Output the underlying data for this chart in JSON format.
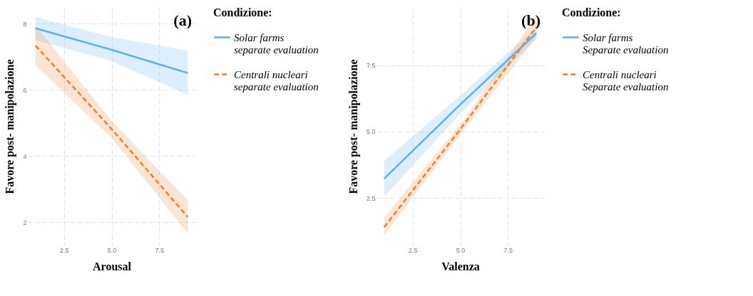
{
  "chart_data": [
    {
      "type": "line",
      "title": "(a)",
      "xlabel": "Arousal",
      "ylabel": "Favore post- manipolazione",
      "legend_title": "Condizione:",
      "legend": "right",
      "grid": true,
      "xlim": [
        0.6,
        9.4
      ],
      "xticks": [
        {
          "value": 2.5,
          "label": "2.5"
        },
        {
          "value": 5,
          "label": "5.0"
        },
        {
          "value": 7.5,
          "label": "7.5"
        }
      ],
      "ylim": [
        1.3,
        8.5
      ],
      "yticks": [
        2,
        4,
        6,
        8
      ],
      "series": [
        {
          "name": "Solar farms\nseparate evaluation",
          "color": "#56b1f7",
          "line_style": "solid",
          "x": [
            1,
            5,
            9
          ],
          "values": [
            7.86,
            7.21,
            6.51
          ],
          "lower": [
            7.5,
            6.87,
            5.85
          ],
          "upper": [
            8.2,
            7.59,
            7.19
          ]
        },
        {
          "name": "Centrali nucleari\nseparate evaluation",
          "color": "#f57f28",
          "line_style": "dashed",
          "x": [
            1,
            5,
            9
          ],
          "values": [
            7.34,
            4.82,
            2.16
          ],
          "lower": [
            6.74,
            4.55,
            1.66
          ],
          "upper": [
            7.95,
            5.06,
            2.67
          ]
        }
      ]
    },
    {
      "type": "line",
      "title": "(b)",
      "xlabel": "Valenza",
      "ylabel": "Favore post- manipolazione",
      "legend_title": "Condizione:",
      "legend": "right",
      "grid": true,
      "xlim": [
        0.6,
        9.4
      ],
      "xticks": [
        {
          "value": 2.5,
          "label": "2.5"
        },
        {
          "value": 5,
          "label": "5.0"
        },
        {
          "value": 7.5,
          "label": "7.5"
        }
      ],
      "ylim": [
        0.7,
        9.7
      ],
      "yticks": [
        {
          "value": 2.5,
          "label": "2.5"
        },
        {
          "value": 5,
          "label": "5.0"
        },
        {
          "value": 7.5,
          "label": "7.5"
        }
      ],
      "series": [
        {
          "name": "Solar farms\nSeparate evaluation",
          "color": "#56b1f7",
          "line_style": "solid",
          "x": [
            1,
            5,
            9
          ],
          "values": [
            3.22,
            6.02,
            8.72
          ],
          "lower": [
            2.54,
            5.68,
            8.51
          ],
          "upper": [
            3.89,
            6.36,
            8.94
          ]
        },
        {
          "name": "Centrali nucleari\nSeparate evaluation",
          "color": "#f57f28",
          "line_style": "dashed",
          "x": [
            1,
            5,
            9
          ],
          "values": [
            1.39,
            5.09,
            8.95
          ],
          "lower": [
            1.08,
            4.9,
            8.56
          ],
          "upper": [
            1.76,
            5.26,
            9.36
          ]
        }
      ]
    }
  ]
}
